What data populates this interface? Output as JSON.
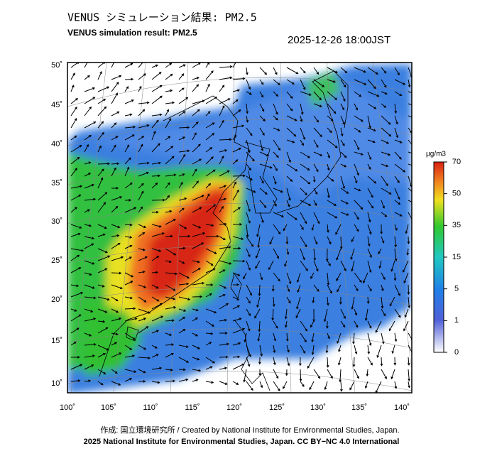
{
  "header": {
    "title": "VENUS シミュレーション結果: PM2.5",
    "subtitle": "VENUS simulation result: PM2.5",
    "datetime": "2025-12-26 18:00JST"
  },
  "map": {
    "lat_labels": [
      "50˚",
      "45˚",
      "40˚",
      "35˚",
      "30˚",
      "25˚",
      "20˚",
      "15˚",
      "10˚"
    ],
    "lon_labels": [
      "100˚",
      "105˚",
      "110˚",
      "115˚",
      "120˚",
      "125˚",
      "130˚",
      "135˚",
      "140˚"
    ]
  },
  "colorbar": {
    "unit": "μg/m3",
    "ticks": [
      70,
      50,
      35,
      15,
      5,
      1,
      0
    ]
  },
  "footer": {
    "credit": "作成: 国立環境研究所 / Created by National Institute for Environmental Studies, Japan.",
    "license": "2025 National Institute for Environmental Studies, Japan. CC BY−NC 4.0 International"
  }
}
